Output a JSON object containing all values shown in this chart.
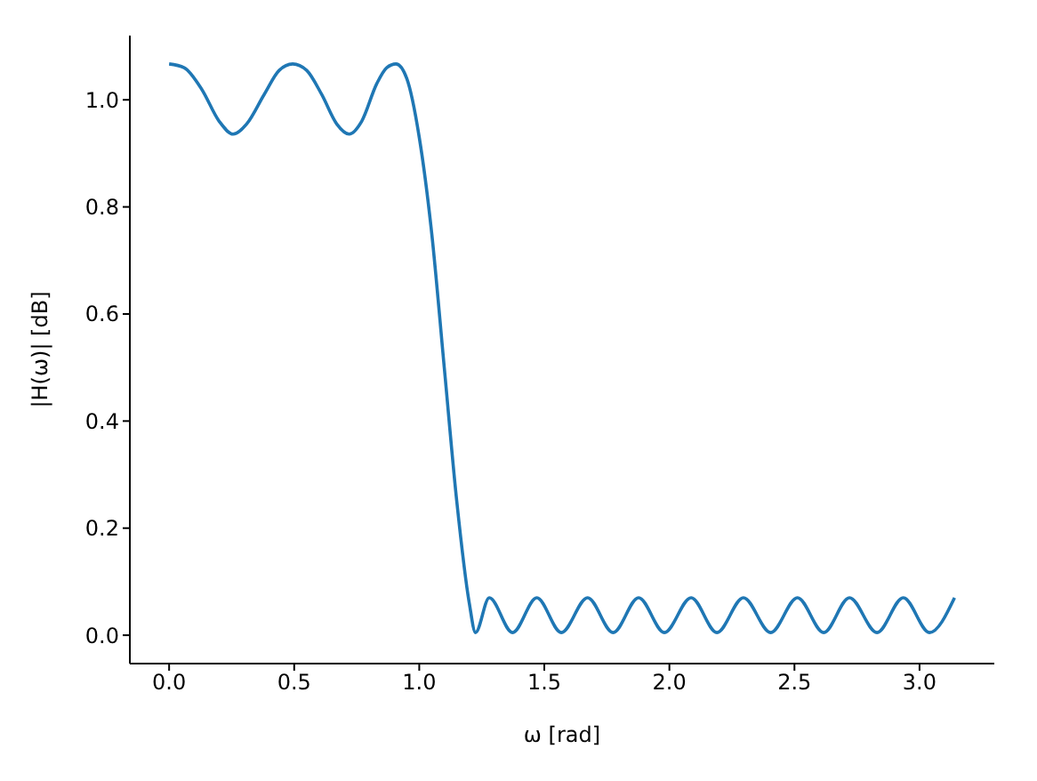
{
  "chart_data": {
    "type": "line",
    "xlabel": "ω [rad]",
    "ylabel": "|H(ω)| [dB]",
    "x": [
      0,
      0.06,
      0.13,
      0.2,
      0.256,
      0.31,
      0.38,
      0.44,
      0.494,
      0.55,
      0.61,
      0.67,
      0.72,
      0.77,
      0.83,
      0.87,
      0.907,
      0.95,
      1.0,
      1.05,
      1.1,
      1.15,
      1.2,
      1.225,
      1.28,
      1.373,
      1.47,
      1.568,
      1.673,
      1.775,
      1.877,
      1.98,
      2.087,
      2.19,
      2.296,
      2.405,
      2.512,
      2.617,
      2.72,
      2.83,
      2.935,
      3.04,
      3.14
    ],
    "series": [
      {
        "color": "#1f77b4",
        "values": [
          1.067,
          1.06,
          1.02,
          0.96,
          0.936,
          0.955,
          1.01,
          1.055,
          1.067,
          1.055,
          1.01,
          0.955,
          0.936,
          0.96,
          1.03,
          1.06,
          1.067,
          1.04,
          0.93,
          0.75,
          0.5,
          0.25,
          0.06,
          0.005,
          0.07,
          0.005,
          0.07,
          0.005,
          0.07,
          0.005,
          0.07,
          0.005,
          0.07,
          0.005,
          0.07,
          0.005,
          0.07,
          0.005,
          0.07,
          0.005,
          0.07,
          0.005,
          0.07
        ]
      }
    ],
    "xlim": [
      -0.157,
      3.299
    ],
    "ylim": [
      -0.053,
      1.12
    ],
    "xticks": [
      {
        "value": 0,
        "label": "0.0"
      },
      {
        "value": 0.5,
        "label": "0.5"
      },
      {
        "value": 1,
        "label": "1.0"
      },
      {
        "value": 1.5,
        "label": "1.5"
      },
      {
        "value": 2,
        "label": "2.0"
      },
      {
        "value": 2.5,
        "label": "2.5"
      },
      {
        "value": 3,
        "label": "3.0"
      }
    ],
    "yticks": [
      {
        "value": 0,
        "label": "0.0"
      },
      {
        "value": 0.2,
        "label": "0.2"
      },
      {
        "value": 0.4,
        "label": "0.4"
      },
      {
        "value": 0.6,
        "label": "0.6"
      },
      {
        "value": 0.8,
        "label": "0.8"
      },
      {
        "value": 1,
        "label": "1.0"
      }
    ],
    "grid": false,
    "legend": false,
    "marker": "none",
    "line_style": "solid"
  }
}
